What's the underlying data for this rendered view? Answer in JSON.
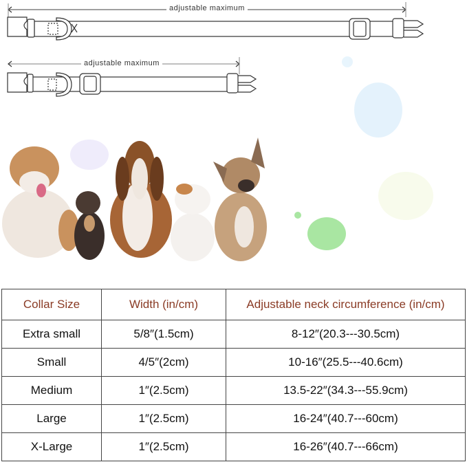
{
  "diagram": {
    "long_collar_label": "adjustable maximum",
    "short_collar_label": "adjustable maximum"
  },
  "table": {
    "headers": [
      "Collar Size",
      "Width (in/cm)",
      "Adjustable neck circumference (in/cm)"
    ],
    "rows": [
      [
        "Extra small",
        "5/8″(1.5cm)",
        "8-12″(20.3---30.5cm)"
      ],
      [
        "Small",
        "4/5″(2cm)",
        "10-16″(25.5---40.6cm)"
      ],
      [
        "Medium",
        "1″(2.5cm)",
        "13.5-22″(34.3---55.9cm)"
      ],
      [
        "Large",
        "1″(2.5cm)",
        "16-24″(40.7---60cm)"
      ],
      [
        "X-Large",
        "1″(2.5cm)",
        "16-26″(40.7---66cm)"
      ]
    ],
    "header_color": "#8a3b25"
  }
}
